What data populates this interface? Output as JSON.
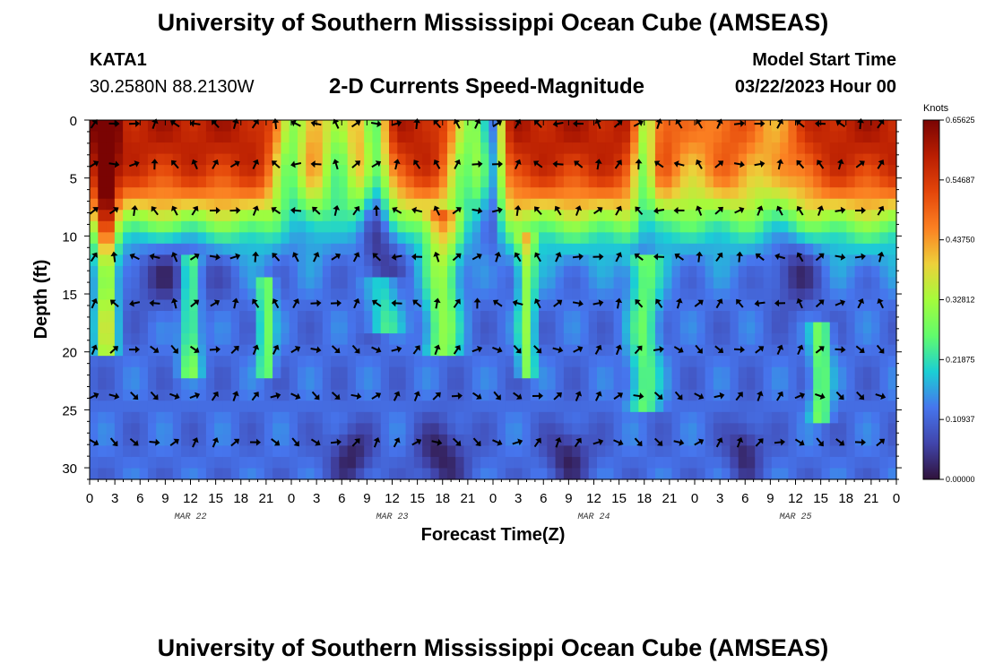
{
  "header": {
    "title": "University of Southern Mississippi Ocean Cube (AMSEAS)",
    "station": "KATA1",
    "coords": "30.2580N  88.2130W",
    "subtitle": "2-D Currents Speed-Magnitude",
    "model_start_label": "Model Start Time",
    "model_start_value": "03/22/2023 Hour 00"
  },
  "footer": {
    "title": "University of Southern Mississippi Ocean Cube (AMSEAS)"
  },
  "chart_data": {
    "type": "heatmap",
    "title": "2-D Currents Speed-Magnitude",
    "xlabel": "Forecast Time(Z)",
    "ylabel": "Depth (ft)",
    "x_range_hours": [
      0,
      96
    ],
    "y_range_ft": [
      0,
      31
    ],
    "x_tick_hours": [
      0,
      3,
      6,
      9,
      12,
      15,
      18,
      21,
      24,
      27,
      30,
      33,
      36,
      39,
      42,
      45,
      48,
      51,
      54,
      57,
      60,
      63,
      66,
      69,
      72,
      75,
      78,
      81,
      84,
      87,
      90,
      93,
      96
    ],
    "x_tick_labels": [
      "0",
      "3",
      "6",
      "9",
      "12",
      "15",
      "18",
      "21",
      "0",
      "3",
      "6",
      "9",
      "12",
      "15",
      "18",
      "21",
      "0",
      "3",
      "6",
      "9",
      "12",
      "15",
      "18",
      "21",
      "0",
      "3",
      "6",
      "9",
      "12",
      "15",
      "18",
      "21",
      "0"
    ],
    "y_ticks": [
      0,
      5,
      10,
      15,
      20,
      25,
      30
    ],
    "y_tick_labels": [
      "0",
      "5",
      "10",
      "15",
      "20",
      "25",
      "30"
    ],
    "date_labels": [
      {
        "hour": 12,
        "text": "MAR 22"
      },
      {
        "hour": 36,
        "text": "MAR 23"
      },
      {
        "hour": 60,
        "text": "MAR 24"
      },
      {
        "hour": 84,
        "text": "MAR 25"
      }
    ],
    "colorbar": {
      "unit": "Knots",
      "min": 0.0,
      "max": 0.65625,
      "tick_labels": [
        "0.65625",
        "0.54687",
        "0.43750",
        "0.32812",
        "0.21875",
        "0.10937",
        "0.00000"
      ],
      "tick_values": [
        0.65625,
        0.546875,
        0.4375,
        0.328125,
        0.21875,
        0.109375,
        0.0
      ]
    },
    "arrow_rows_depth_ft": [
      0,
      3.8,
      7.8,
      11.8,
      15.8,
      19.8,
      23.8,
      27.8
    ],
    "arrow_columns_hours": [
      0,
      2.4,
      4.8,
      7.2,
      9.6,
      12,
      14.4,
      16.8,
      19.2,
      21.6,
      24,
      26.4,
      28.8,
      31.2,
      33.6,
      36,
      38.4,
      40.8,
      43.2,
      45.6,
      48,
      50.4,
      52.8,
      55.2,
      57.6,
      60,
      62.4,
      64.8,
      67.2,
      69.6,
      72,
      74.4,
      76.8,
      79.2,
      81.6,
      84,
      86.4,
      88.8,
      91.2,
      93.6
    ],
    "speed_grid_hint": "Surface (0-8 ft) mostly 0.45-0.65 kn with troughs near hours 24, 27-33, 48 and 66; mid-depth 0.10-0.25 kn; bottom 25-31 ft 0.0-0.20 kn with minima near hours 31, 42, 57, 78"
  }
}
